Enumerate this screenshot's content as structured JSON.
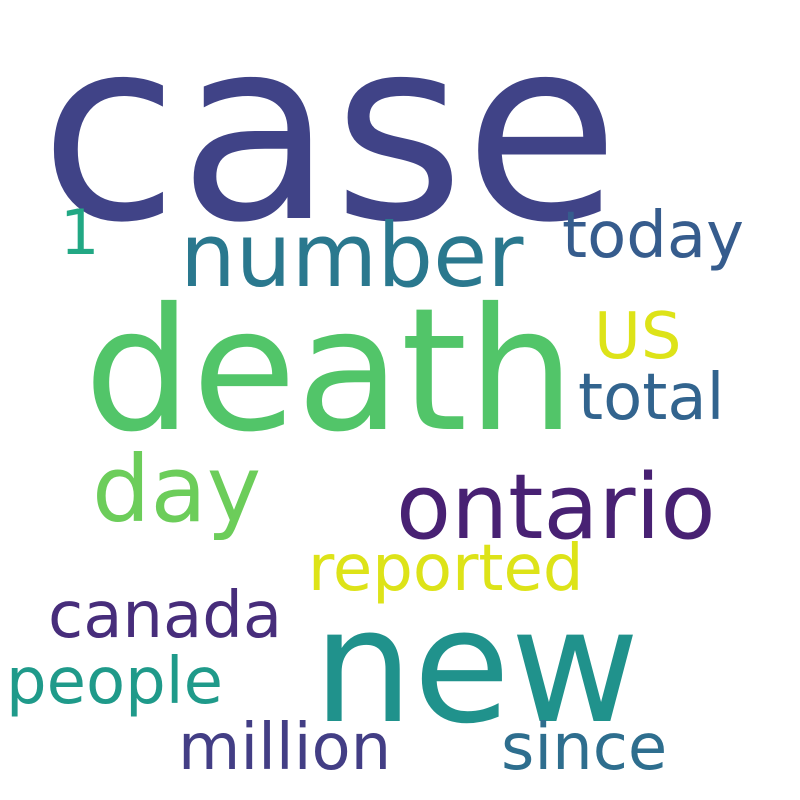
{
  "words": [
    {
      "key": "case",
      "text": "case",
      "color": "#404387"
    },
    {
      "key": "death",
      "text": "death",
      "color": "#52c569"
    },
    {
      "key": "number",
      "text": "number",
      "color": "#2a788e"
    },
    {
      "key": "today",
      "text": "today",
      "color": "#365c8d"
    },
    {
      "key": "one",
      "text": "1",
      "color": "#22a884"
    },
    {
      "key": "us",
      "text": "US",
      "color": "#dde318"
    },
    {
      "key": "total",
      "text": "total",
      "color": "#32648e"
    },
    {
      "key": "day",
      "text": "day",
      "color": "#6ccd5a"
    },
    {
      "key": "ontario",
      "text": "ontario",
      "color": "#482173"
    },
    {
      "key": "reported",
      "text": "reported",
      "color": "#dde318"
    },
    {
      "key": "canada",
      "text": "canada",
      "color": "#472d7b"
    },
    {
      "key": "new",
      "text": "new",
      "color": "#20928c"
    },
    {
      "key": "people",
      "text": "people",
      "color": "#1f9a8a"
    },
    {
      "key": "million",
      "text": "million",
      "color": "#433e85"
    },
    {
      "key": "since",
      "text": "since",
      "color": "#2e6e8e"
    }
  ]
}
